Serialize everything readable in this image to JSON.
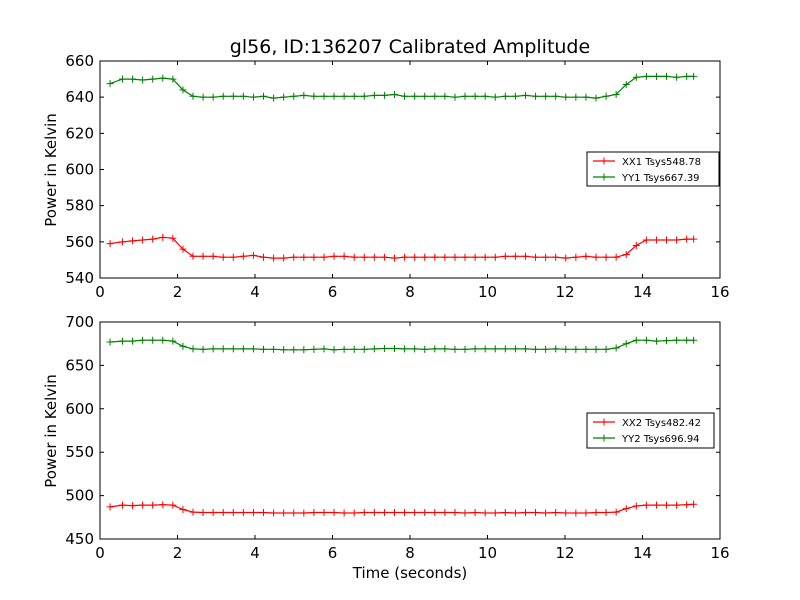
{
  "figure_title": "gl56, ID:136207 Calibrated Amplitude",
  "colors": {
    "xx": "#ff0000",
    "yy": "#008000",
    "axes": "#000000",
    "background": "#ffffff"
  },
  "chart_data": [
    {
      "type": "line",
      "title": "gl56, ID:136207 Calibrated Amplitude",
      "xlabel": "",
      "ylabel": "Power in Kelvin",
      "xlim": [
        0,
        16
      ],
      "ylim": [
        540,
        660
      ],
      "xticks": [
        "0",
        "2",
        "4",
        "6",
        "8",
        "10",
        "12",
        "14",
        "16"
      ],
      "yticks": [
        "540",
        "560",
        "580",
        "600",
        "620",
        "640",
        "660"
      ],
      "legend_position": "center-right",
      "grid": false,
      "x": [
        0.26,
        0.58,
        0.84,
        1.1,
        1.36,
        1.62,
        1.88,
        2.14,
        2.4,
        2.66,
        2.92,
        3.18,
        3.44,
        3.7,
        3.96,
        4.22,
        4.48,
        4.74,
        5.0,
        5.26,
        5.52,
        5.78,
        6.04,
        6.3,
        6.56,
        6.82,
        7.08,
        7.34,
        7.6,
        7.86,
        8.12,
        8.38,
        8.64,
        8.9,
        9.16,
        9.42,
        9.68,
        9.94,
        10.2,
        10.46,
        10.72,
        10.98,
        11.24,
        11.5,
        11.76,
        12.02,
        12.28,
        12.54,
        12.8,
        13.06,
        13.32,
        13.58,
        13.84,
        14.1,
        14.36,
        14.62,
        14.88,
        15.14,
        15.32
      ],
      "series": [
        {
          "name": "XX1 Tsys548.78",
          "color": "#ff0000",
          "values": [
            559,
            560,
            560.5,
            561,
            561.5,
            562.5,
            562,
            556,
            552,
            552,
            552,
            551.5,
            551.5,
            552,
            552.5,
            551.5,
            551,
            551,
            551.5,
            551.5,
            551.5,
            551.5,
            552,
            552,
            551.5,
            551.5,
            551.5,
            551.5,
            551,
            551.5,
            551.5,
            551.5,
            551.5,
            551.5,
            551.5,
            551.5,
            551.5,
            551.5,
            551.5,
            552,
            552,
            552,
            551.5,
            551.5,
            551.5,
            551,
            551.5,
            552,
            551.5,
            551.5,
            551.5,
            553,
            558,
            561,
            561,
            561,
            561,
            561.5,
            561.5
          ]
        },
        {
          "name": "YY1 Tsys667.39",
          "color": "#008000",
          "values": [
            647.5,
            650,
            650,
            649.5,
            650,
            650.5,
            650,
            644,
            640.5,
            640,
            640,
            640.5,
            640.5,
            640.5,
            640,
            640.5,
            639.5,
            640,
            640.5,
            641,
            640.5,
            640.5,
            640.5,
            640.5,
            640.5,
            640.5,
            641,
            641,
            641.5,
            640.5,
            640.5,
            640.5,
            640.5,
            640.5,
            640,
            640.5,
            640.5,
            640.5,
            640,
            640.5,
            640.5,
            641,
            640.5,
            640.5,
            640.5,
            640,
            640,
            640,
            639.5,
            640.5,
            641.5,
            647,
            651,
            651.5,
            651.5,
            651.5,
            651,
            651.5,
            651.5
          ]
        }
      ]
    },
    {
      "type": "line",
      "title": "",
      "xlabel": "Time (seconds)",
      "ylabel": "Power in Kelvin",
      "xlim": [
        0,
        16
      ],
      "ylim": [
        450,
        700
      ],
      "xticks": [
        "0",
        "2",
        "4",
        "6",
        "8",
        "10",
        "12",
        "14",
        "16"
      ],
      "yticks": [
        "450",
        "500",
        "550",
        "600",
        "650",
        "700"
      ],
      "legend_position": "center-right",
      "grid": false,
      "x": [
        0.26,
        0.58,
        0.84,
        1.1,
        1.36,
        1.62,
        1.88,
        2.14,
        2.4,
        2.66,
        2.92,
        3.18,
        3.44,
        3.7,
        3.96,
        4.22,
        4.48,
        4.74,
        5.0,
        5.26,
        5.52,
        5.78,
        6.04,
        6.3,
        6.56,
        6.82,
        7.08,
        7.34,
        7.6,
        7.86,
        8.12,
        8.38,
        8.64,
        8.9,
        9.16,
        9.42,
        9.68,
        9.94,
        10.2,
        10.46,
        10.72,
        10.98,
        11.24,
        11.5,
        11.76,
        12.02,
        12.28,
        12.54,
        12.8,
        13.06,
        13.32,
        13.58,
        13.84,
        14.1,
        14.36,
        14.62,
        14.88,
        15.14,
        15.32
      ],
      "series": [
        {
          "name": "XX2 Tsys482.42",
          "color": "#ff0000",
          "values": [
            487,
            489,
            488.5,
            489,
            489,
            489.5,
            489,
            484,
            481,
            480.5,
            480.5,
            480.5,
            480.5,
            480.5,
            480.5,
            480.5,
            480,
            480,
            480,
            480,
            480.5,
            480.5,
            480.5,
            480,
            480,
            480.5,
            480.5,
            480.5,
            480.5,
            480.5,
            480.5,
            480.5,
            480.5,
            480.5,
            480.5,
            480,
            480.5,
            480,
            480,
            480.5,
            480,
            480.5,
            480.5,
            480,
            480.5,
            480,
            480,
            480,
            480.5,
            480.5,
            481,
            485,
            488,
            489,
            489,
            489,
            489,
            489.5,
            490
          ]
        },
        {
          "name": "YY2 Tsys696.94",
          "color": "#008000",
          "values": [
            677,
            678,
            678,
            679,
            679,
            679,
            678,
            672,
            669,
            668.5,
            669,
            669,
            669,
            669,
            669,
            668.5,
            668.5,
            668,
            668,
            668,
            668.5,
            669,
            668,
            668.5,
            668.5,
            668.5,
            669,
            669.5,
            669.5,
            669,
            669,
            668.5,
            669,
            669,
            668.5,
            668.5,
            669,
            669,
            669,
            669,
            669,
            669,
            668.5,
            668.5,
            669,
            668.5,
            668.5,
            668.5,
            668.5,
            668.5,
            670,
            675,
            679,
            679,
            678,
            678.5,
            679,
            679,
            679
          ]
        }
      ]
    }
  ]
}
